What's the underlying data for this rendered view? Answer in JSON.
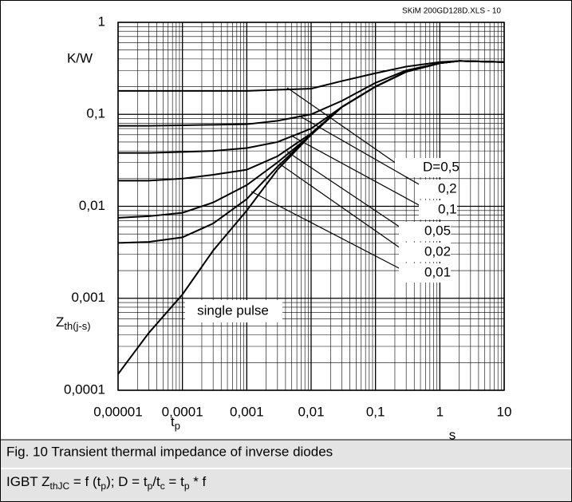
{
  "chart_data": {
    "type": "line",
    "header": "SKiM 200GD128D.XLS - 10",
    "y_unit": "K/W",
    "y_label": "Z",
    "y_label_sub": "th(j-s)",
    "x_label": "t",
    "x_label_sub": "p",
    "x_unit": "s",
    "caption_1": "Fig. 10 Transient thermal impedance of inverse diodes",
    "caption_2": [
      "IGBT Z",
      "thJC",
      " = f (t",
      "p",
      "); D = t",
      "p",
      "/t",
      "c",
      " = t",
      "p",
      " * f"
    ],
    "log_x": true,
    "log_y": true,
    "grid": true,
    "minor_grid": true,
    "xlim": [
      1e-05,
      10
    ],
    "ylim": [
      0.0001,
      1
    ],
    "xticks": [
      {
        "value": 1e-05,
        "label": "0,00001"
      },
      {
        "value": 0.0001,
        "label": "0,0001"
      },
      {
        "value": 0.001,
        "label": "0,001"
      },
      {
        "value": 0.01,
        "label": "0,01"
      },
      {
        "value": 0.1,
        "label": "0,1"
      },
      1,
      10
    ],
    "yticks": [
      {
        "value": 0.0001,
        "label": "0,0001"
      },
      {
        "value": 0.001,
        "label": "0,001"
      },
      {
        "value": 0.01,
        "label": "0,01"
      },
      {
        "value": 0.1,
        "label": "0,1"
      },
      1
    ],
    "x": [
      1e-05,
      3e-05,
      0.0001,
      0.0003,
      0.001,
      0.003,
      0.01,
      0.03,
      0.1,
      0.3,
      1,
      2,
      10
    ],
    "series": [
      {
        "name": "single pulse",
        "color": "#000000",
        "values": [
          0.00015,
          0.00042,
          0.0011,
          0.0033,
          0.009,
          0.025,
          0.06,
          0.12,
          0.2,
          0.29,
          0.36,
          0.38,
          0.37
        ]
      },
      {
        "name": "D=0,5",
        "color": "#000000",
        "values": [
          0.18,
          0.18,
          0.18,
          0.18,
          0.18,
          0.185,
          0.19,
          0.23,
          0.28,
          0.33,
          0.37,
          0.38,
          0.37
        ]
      },
      {
        "name": "0,2",
        "color": "#000000",
        "values": [
          0.075,
          0.075,
          0.076,
          0.077,
          0.078,
          0.085,
          0.1,
          0.14,
          0.22,
          0.3,
          0.36,
          0.38,
          0.37
        ]
      },
      {
        "name": "0,1",
        "color": "#000000",
        "values": [
          0.038,
          0.038,
          0.039,
          0.04,
          0.043,
          0.05,
          0.07,
          0.12,
          0.2,
          0.29,
          0.36,
          0.38,
          0.37
        ]
      },
      {
        "name": "0,05",
        "color": "#000000",
        "values": [
          0.019,
          0.019,
          0.02,
          0.022,
          0.025,
          0.035,
          0.062,
          0.12,
          0.2,
          0.29,
          0.36,
          0.38,
          0.37
        ]
      },
      {
        "name": "0,02",
        "color": "#000000",
        "values": [
          0.0075,
          0.0078,
          0.0085,
          0.011,
          0.017,
          0.03,
          0.06,
          0.12,
          0.2,
          0.29,
          0.36,
          0.38,
          0.37
        ]
      },
      {
        "name": "0,01",
        "color": "#000000",
        "values": [
          0.004,
          0.0041,
          0.0046,
          0.0065,
          0.012,
          0.027,
          0.06,
          0.12,
          0.2,
          0.29,
          0.36,
          0.38,
          0.37
        ]
      }
    ]
  }
}
